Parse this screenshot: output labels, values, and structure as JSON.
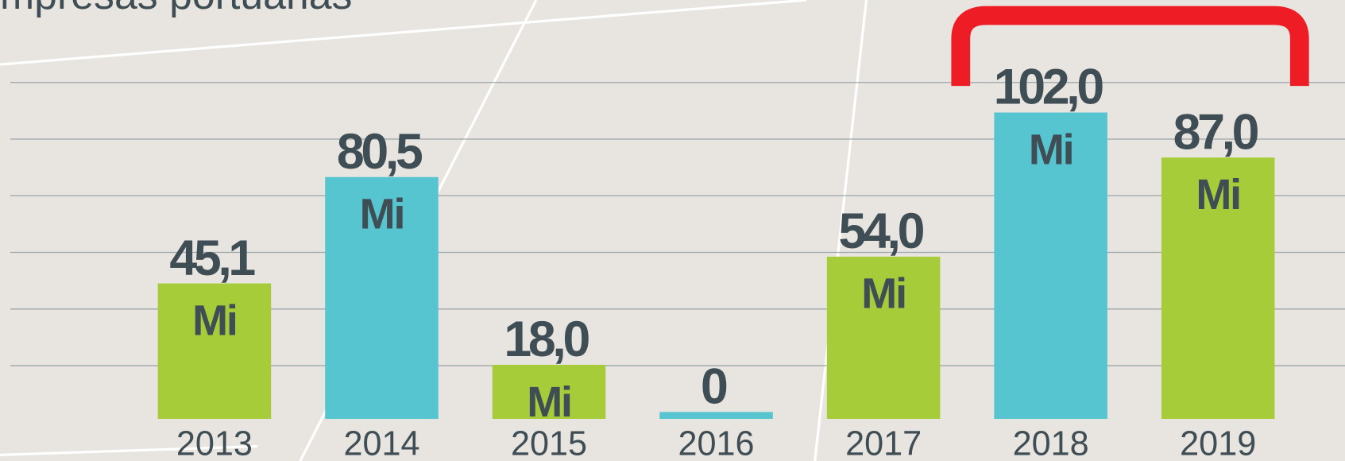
{
  "chart_data": {
    "type": "bar",
    "title": "mpresas portuarias",
    "categories": [
      "2013",
      "2014",
      "2015",
      "2016",
      "2017",
      "2018",
      "2019"
    ],
    "values": [
      45.1,
      80.5,
      18.0,
      0,
      54.0,
      102.0,
      87.0
    ],
    "value_labels": [
      "45,1",
      "80,5",
      "18,0",
      "0",
      "54,0",
      "102,0",
      "87,0"
    ],
    "unit_label": "Mi",
    "colors": [
      "#a6cc3a",
      "#56c5d0",
      "#a6cc3a",
      "#56c5d0",
      "#a6cc3a",
      "#56c5d0",
      "#a6cc3a"
    ],
    "ylim": [
      0,
      112
    ]
  }
}
